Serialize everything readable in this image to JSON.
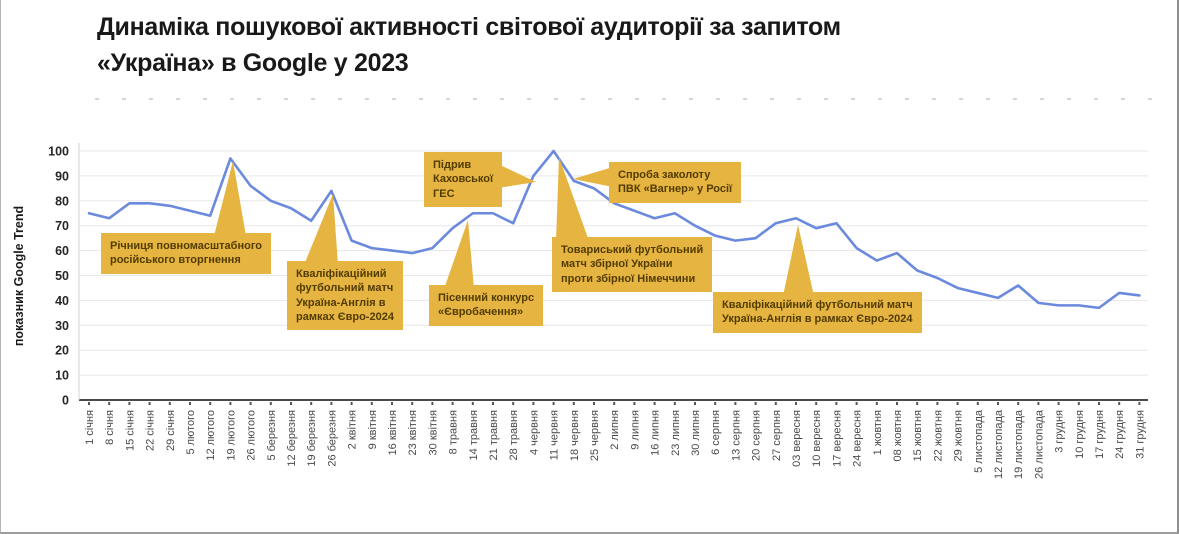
{
  "title": {
    "lines": [
      "Динаміка пошукової активності світової аудиторії за запитом",
      "«Україна» в Google у 2023"
    ]
  },
  "chart_data": {
    "type": "line",
    "title": "Динаміка пошукової активності світової аудиторії за запитом «Україна» в Google у 2023",
    "xlabel": "",
    "ylabel": "показник Google Trend",
    "ylim": [
      0,
      100
    ],
    "yticks": [
      100,
      90,
      80,
      70,
      60,
      50,
      40,
      30,
      20,
      10,
      0
    ],
    "grid": true,
    "legend": "none",
    "line_color": "#6b8add",
    "annotation_color": "#e6b440",
    "annotation_text_color": "#523c00",
    "categories": [
      "1 січня",
      "8 січня",
      "15 січня",
      "22 січня",
      "29 січня",
      "5 лютого",
      "12 лютого",
      "19 лютого",
      "26 лютого",
      "5 березня",
      "12 березня",
      "19 березня",
      "26 березня",
      "2 квітня",
      "9 квітня",
      "16 квітня",
      "23 квітня",
      "30 квітня",
      "8 травня",
      "14 травня",
      "21 травня",
      "28 травня",
      "4 червня",
      "11 червня",
      "18 червня",
      "25 червня",
      "2 липня",
      "9 липня",
      "16 липня",
      "23 липня",
      "30 липня",
      "6 серпня",
      "13 серпня",
      "20 серпня",
      "27 серпня",
      "03 вересня",
      "10 вересня",
      "17 вересня",
      "24 вересня",
      "1 жовтня",
      "08 жовтня",
      "15 жовтня",
      "22 жовтня",
      "29 жовтня",
      "5 листопада",
      "12 листопада",
      "19 листопада",
      "26 листопада",
      "3 грудня",
      "10 грудня",
      "17 грудня",
      "24 грудня",
      "31 грудня"
    ],
    "values": [
      75,
      73,
      79,
      79,
      78,
      76,
      74,
      97,
      86,
      80,
      77,
      72,
      84,
      64,
      61,
      60,
      59,
      61,
      69,
      75,
      75,
      71,
      90,
      100,
      88,
      85,
      79,
      76,
      73,
      75,
      70,
      66,
      64,
      65,
      71,
      73,
      69,
      71,
      61,
      56,
      59,
      52,
      49,
      45,
      43,
      41,
      46,
      39,
      38,
      38,
      37,
      43,
      42
    ],
    "annotations": [
      {
        "id": "a1",
        "target": "19 лютого",
        "lines": [
          "Річниця повномасштабного",
          "російського вторгнення"
        ]
      },
      {
        "id": "a2",
        "target": "26 березня",
        "lines": [
          "Кваліфікаційний",
          "футбольний матч",
          "Україна-Англія в",
          "рамках Євро-2024"
        ]
      },
      {
        "id": "a3",
        "target": "14 травня",
        "lines": [
          "Пісенний конкурс",
          "«Євробачення»"
        ]
      },
      {
        "id": "a4",
        "target": "4 червня",
        "lines": [
          "Підрив",
          "Каховської",
          "ГЕС"
        ]
      },
      {
        "id": "a5",
        "target": "11 червня",
        "lines": [
          "Товариський футбольний",
          "матч збірної України",
          "проти збірної Німеччини"
        ]
      },
      {
        "id": "a6",
        "target": "18 червня",
        "lines": [
          "Спроба заколоту",
          "ПВК «Вагнер» у Росії"
        ]
      },
      {
        "id": "a7",
        "target": "03 вересня",
        "lines": [
          "Кваліфікаційний футбольний матч",
          "Україна-Англія в рамках Євро-2024"
        ]
      }
    ]
  }
}
